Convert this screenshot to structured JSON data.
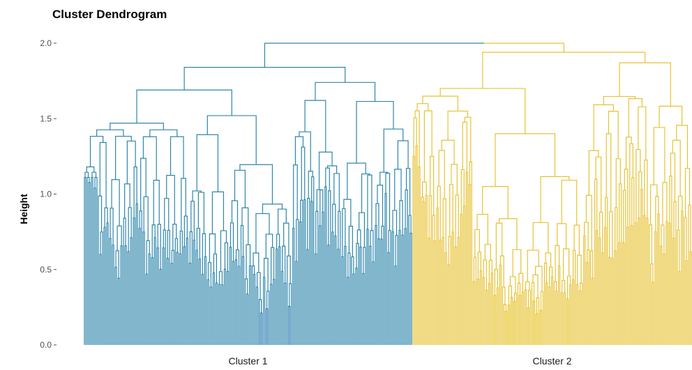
{
  "chart_data": {
    "type": "dendrogram",
    "title": "Cluster Dendrogram",
    "xlabel": "",
    "ylabel": "Height",
    "ylim": [
      0,
      2.0
    ],
    "y_ticks": [
      "0.0",
      "0.5",
      "1.0",
      "1.5",
      "2.0"
    ],
    "y_tick_values": [
      0,
      0.5,
      1.0,
      1.5,
      2.0
    ],
    "grid": false,
    "clusters": [
      {
        "label": "Cluster 1",
        "color": "#2E86AB",
        "leaf_color": "#1E74B0",
        "leaf_count": 235
      },
      {
        "label": "Cluster 2",
        "color": "#E7C233",
        "leaf_color": "#E5C11C",
        "leaf_count": 200
      }
    ],
    "root_height": 2.0,
    "merge_heights": {
      "cluster1": {
        "root": 1.84,
        "children": [
          1.69,
          1.74
        ],
        "grandchildren": [
          1.47,
          1.52,
          1.63,
          1.71,
          1.58,
          1.52
        ],
        "level4": [
          1.18,
          1.4,
          1.6,
          1.25,
          1.32,
          1.37,
          1.48,
          1.08,
          1.05,
          1.2,
          1.25,
          1.45,
          1.13,
          1.34,
          1.43,
          1.47,
          1.04,
          1.07,
          1.0
        ]
      },
      "cluster2": {
        "root": 1.94,
        "children": [
          1.7,
          1.87,
          1.81
        ],
        "grandchildren": [
          1.4,
          1.65,
          1.55,
          1.62,
          1.6,
          1.8
        ],
        "level4": [
          1.18,
          1.25,
          1.32,
          1.39,
          1.2,
          1.05,
          1.33,
          1.4,
          1.15,
          1.08,
          1.25,
          0.98,
          0.99,
          1.22,
          1.42,
          1.3,
          1.0,
          0.8,
          1.05,
          0.99,
          0.86
        ]
      }
    }
  }
}
